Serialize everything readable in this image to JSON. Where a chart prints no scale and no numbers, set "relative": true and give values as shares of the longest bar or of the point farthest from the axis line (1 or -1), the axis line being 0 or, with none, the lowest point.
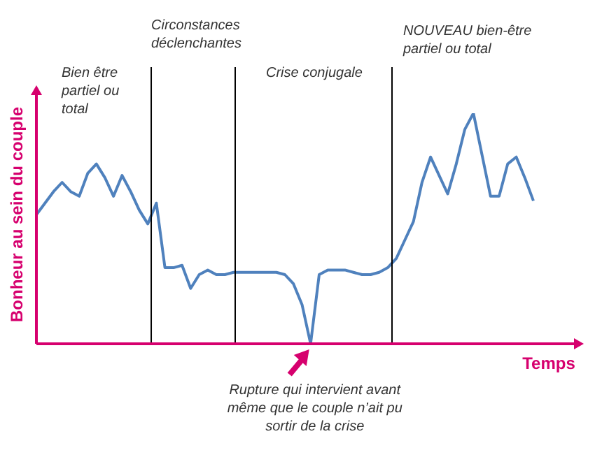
{
  "chart_data": {
    "type": "line",
    "relative": true,
    "xlabel": "Temps",
    "ylabel": "Bonheur au sein du couple",
    "marker": "none",
    "line_style": "solid",
    "categories": [
      null,
      null,
      null,
      null,
      null,
      null,
      null,
      null,
      null,
      null,
      null,
      null,
      null,
      null,
      null,
      null,
      null,
      null,
      null,
      null,
      null,
      null,
      null,
      null,
      null,
      null,
      null,
      null,
      null,
      null,
      null,
      null,
      null,
      null,
      null,
      null,
      null,
      null,
      null,
      null,
      null,
      null,
      null,
      null,
      null,
      null,
      null,
      null,
      null,
      null,
      null,
      null,
      null,
      null,
      null,
      null,
      null,
      null,
      null
    ],
    "series": [
      {
        "color": "#4f81bd",
        "values": [
          0.56,
          0.61,
          0.66,
          0.7,
          0.66,
          0.64,
          0.74,
          0.78,
          0.72,
          0.64,
          0.73,
          0.66,
          0.58,
          0.52,
          0.61,
          0.33,
          0.33,
          0.34,
          0.24,
          0.3,
          0.32,
          0.3,
          0.3,
          0.31,
          0.31,
          0.31,
          0.31,
          0.31,
          0.31,
          0.3,
          0.26,
          0.17,
          0,
          0.3,
          0.32,
          0.32,
          0.32,
          0.31,
          0.3,
          0.3,
          0.31,
          0.33,
          0.37,
          0.45,
          0.53,
          0.7,
          0.81,
          0.73,
          0.65,
          0.78,
          0.93,
          1,
          0.82,
          0.64,
          0.64,
          0.78,
          0.81,
          0.72,
          0.62
        ]
      }
    ],
    "annotations": [
      "Bien être partiel ou total",
      "Circonstances déclenchantes",
      "Crise conjugale",
      "NOUVEAU bien-être partiel ou total",
      "Rupture qui intervient avant même que le couple n’ait pu sortir de la crise"
    ]
  }
}
